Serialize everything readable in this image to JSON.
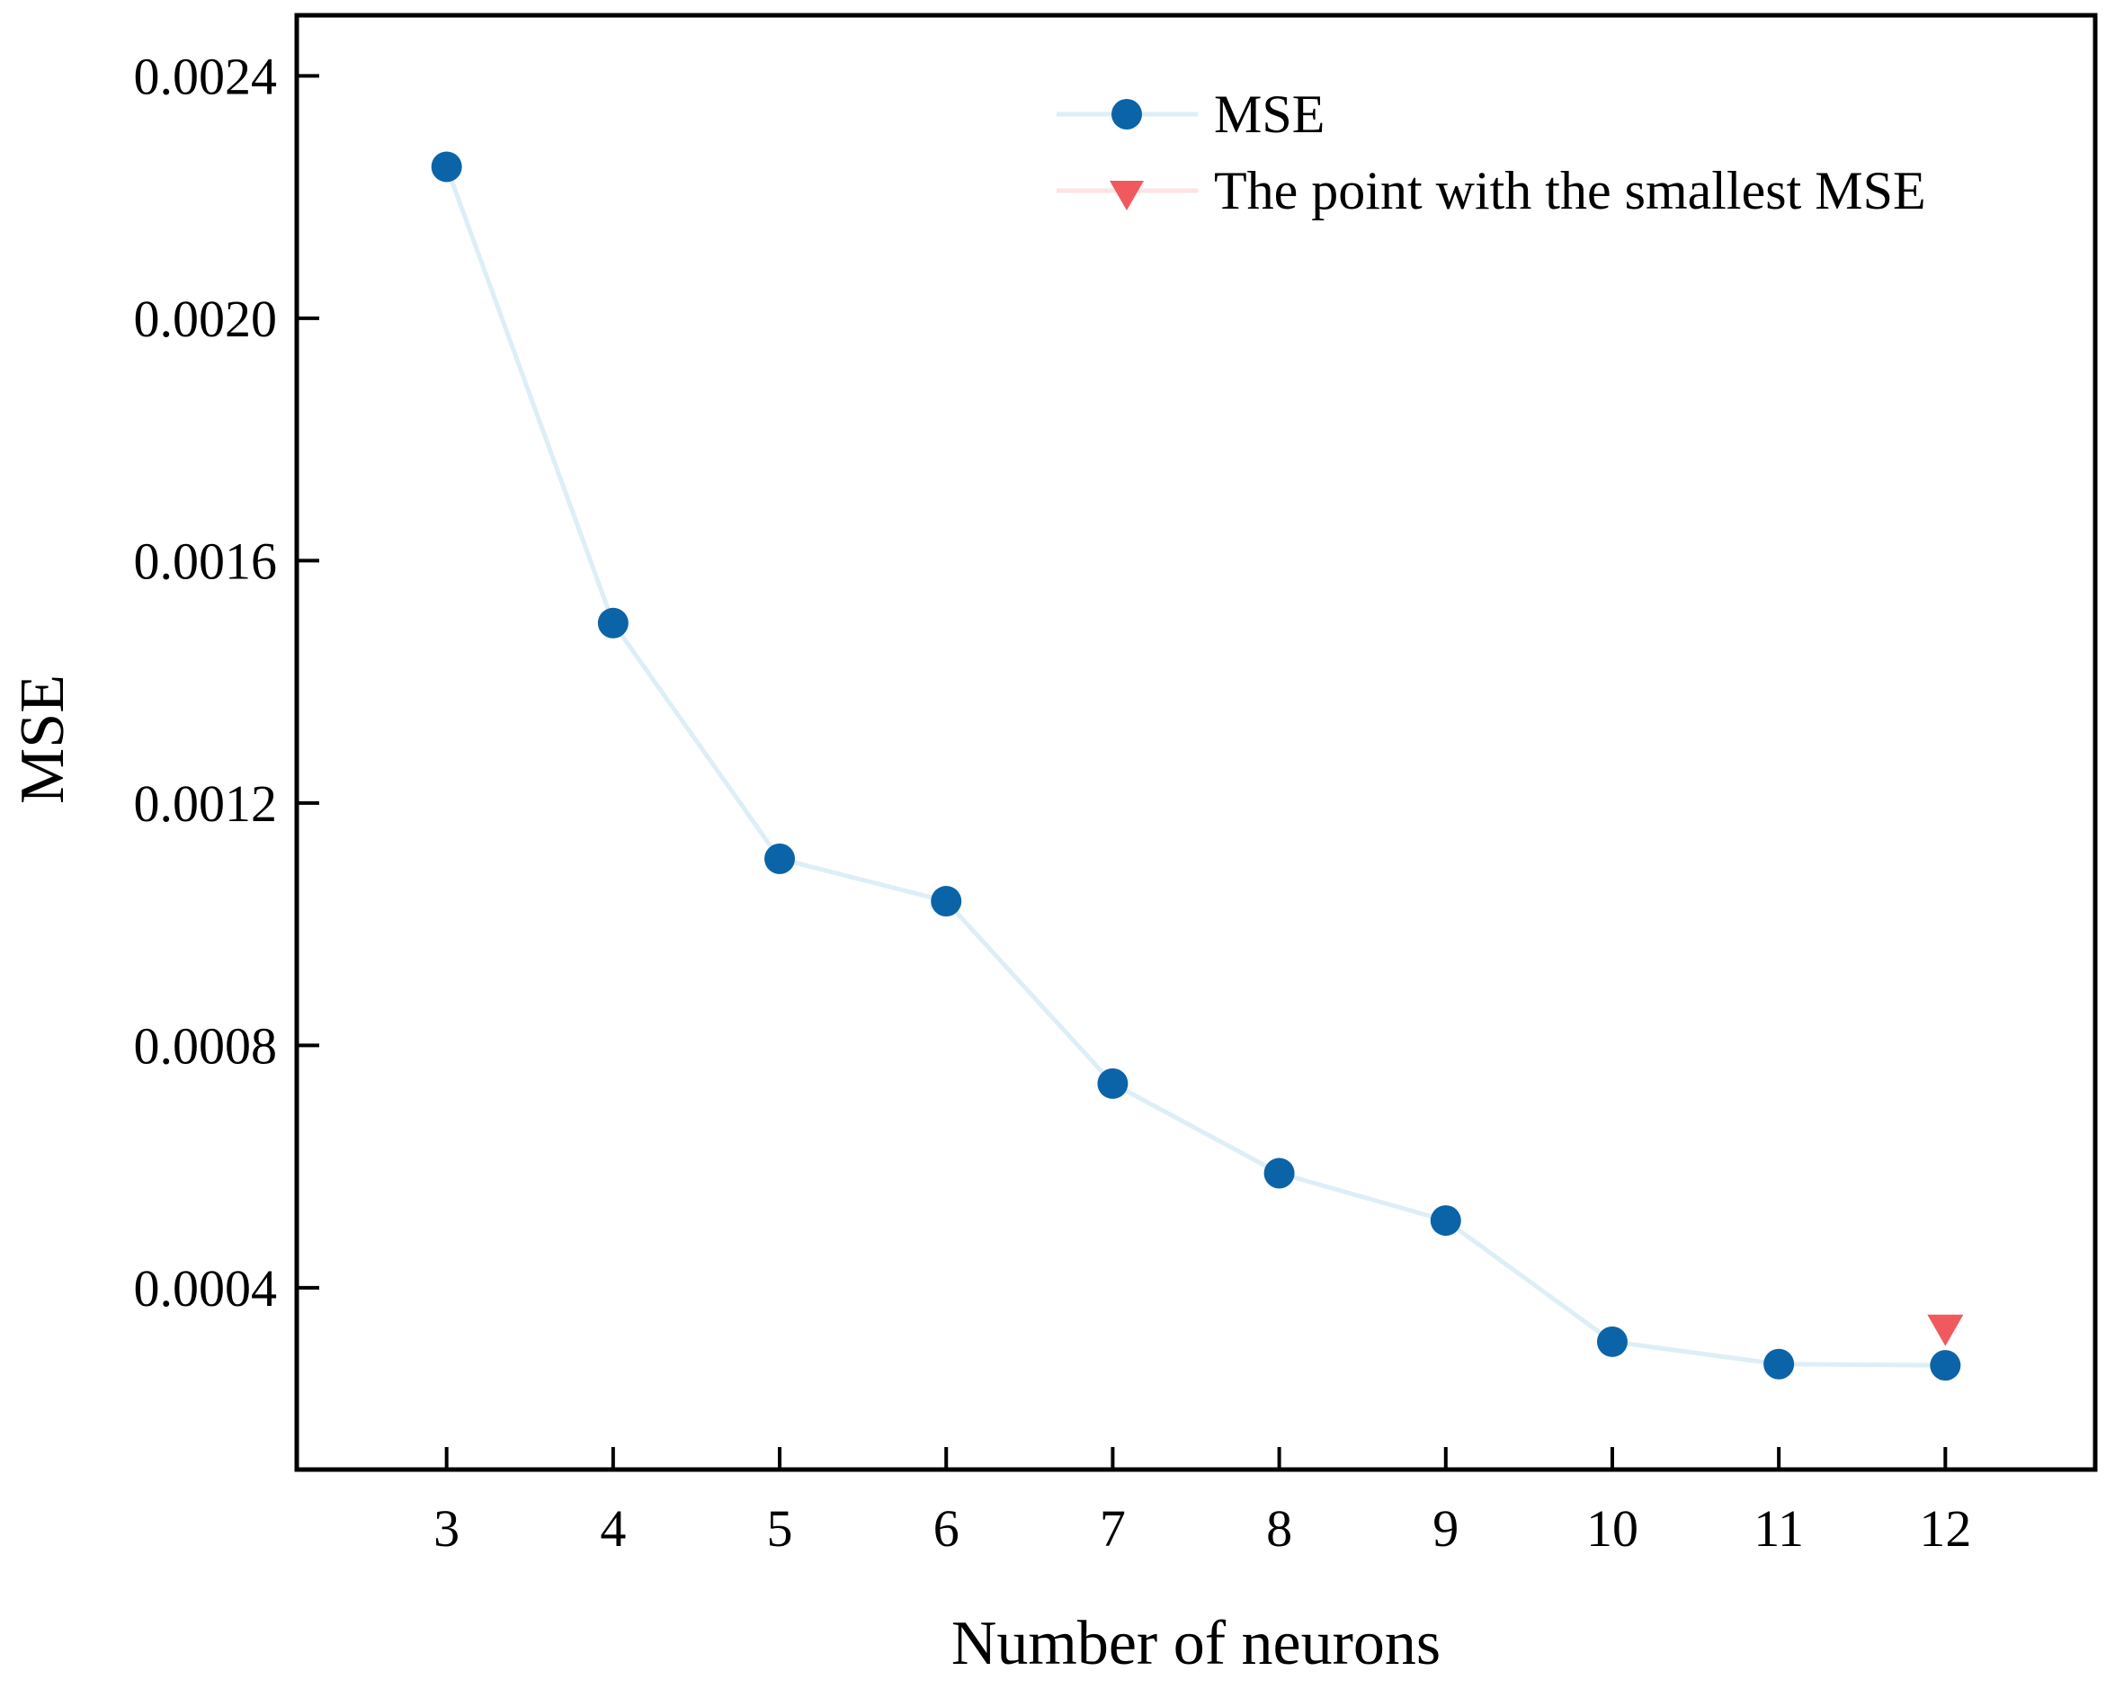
{
  "chart_data": {
    "type": "line",
    "title": "",
    "xlabel": "Number of neurons",
    "ylabel": "MSE",
    "xlim": [
      2.1,
      12.9
    ],
    "ylim": [
      0.0001,
      0.0025
    ],
    "x": [
      3,
      4,
      5,
      6,
      7,
      8,
      9,
      10,
      11,
      12
    ],
    "x_tick_labels": [
      "3",
      "4",
      "5",
      "6",
      "7",
      "8",
      "9",
      "10",
      "11",
      "12"
    ],
    "y_ticks": [
      0.0004,
      0.0008,
      0.0012,
      0.0016,
      0.002,
      0.0024
    ],
    "y_tick_labels": [
      "0.0004",
      "0.0008",
      "0.0012",
      "0.0016",
      "0.0020",
      "0.0024"
    ],
    "grid": false,
    "legend_position": "top-right",
    "series": [
      {
        "name": "MSE",
        "marker": "circle",
        "line_color": "#ddeef7",
        "marker_color": "#0b64a8",
        "values": [
          0.00225,
          0.001497,
          0.001108,
          0.001038,
          0.000737,
          0.000589,
          0.000511,
          0.000311,
          0.000274,
          0.000272
        ]
      },
      {
        "name": "The point with the smallest MSE",
        "marker": "triangle-down",
        "line_color": "#fde3e3",
        "marker_color": "#f0595e",
        "x": 12,
        "value": 0.000329
      }
    ]
  }
}
